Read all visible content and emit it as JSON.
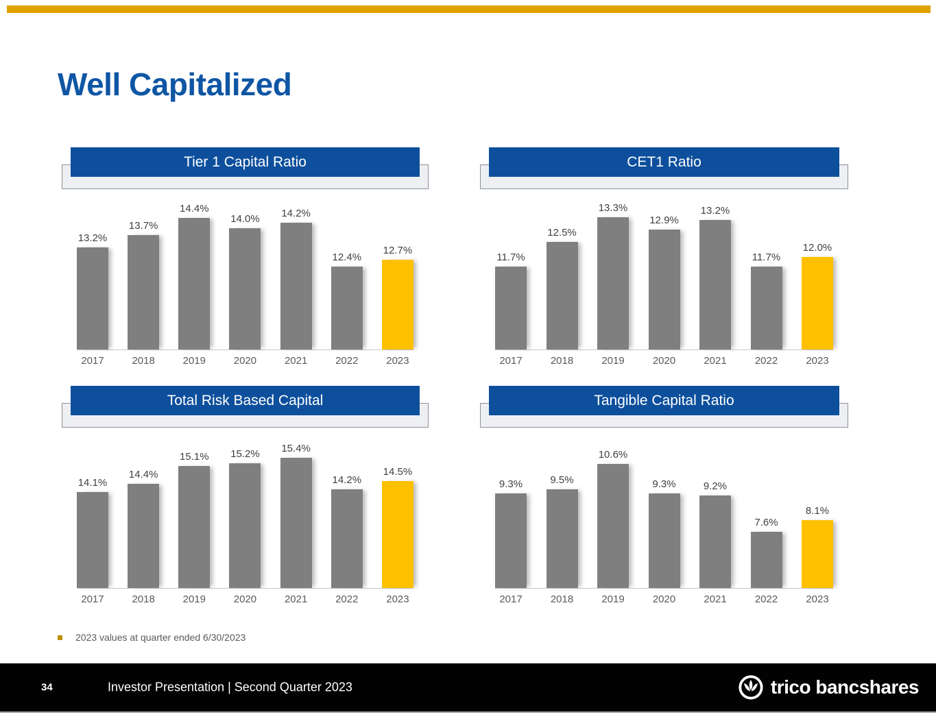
{
  "page": {
    "title": "Well Capitalized"
  },
  "colors": {
    "top_rule_gold": "#DFA301",
    "title_blue": "#0F56A4",
    "header_blue": "#0D4F9C",
    "bar_gray": "#7F7F7F",
    "bar_highlight_gold": "#FFC000",
    "footer_black": "#020202"
  },
  "chart_data": [
    {
      "type": "bar",
      "title": "Tier 1 Capital Ratio",
      "categories": [
        "2017",
        "2018",
        "2019",
        "2020",
        "2021",
        "2022",
        "2023"
      ],
      "values": [
        13.2,
        13.7,
        14.4,
        14.0,
        14.2,
        12.4,
        12.7
      ],
      "labels": [
        "13.2%",
        "13.7%",
        "14.4%",
        "14.0%",
        "14.2%",
        "12.4%",
        "12.7%"
      ],
      "ylim": [
        9.0,
        15.2
      ],
      "highlight_index": 6,
      "grid": false,
      "legend": false
    },
    {
      "type": "bar",
      "title": "CET1 Ratio",
      "categories": [
        "2017",
        "2018",
        "2019",
        "2020",
        "2021",
        "2022",
        "2023"
      ],
      "values": [
        11.7,
        12.5,
        13.3,
        12.9,
        13.2,
        11.7,
        12.0
      ],
      "labels": [
        "11.7%",
        "12.5%",
        "13.3%",
        "12.9%",
        "13.2%",
        "11.7%",
        "12.0%"
      ],
      "ylim": [
        9.0,
        13.9
      ],
      "highlight_index": 6,
      "grid": false,
      "legend": false
    },
    {
      "type": "bar",
      "title": "Total Risk Based Capital",
      "categories": [
        "2017",
        "2018",
        "2019",
        "2020",
        "2021",
        "2022",
        "2023"
      ],
      "values": [
        14.1,
        14.4,
        15.1,
        15.2,
        15.4,
        14.2,
        14.5
      ],
      "labels": [
        "14.1%",
        "14.4%",
        "15.1%",
        "15.2%",
        "15.4%",
        "14.2%",
        "14.5%"
      ],
      "ylim": [
        10.4,
        16.2
      ],
      "highlight_index": 6,
      "grid": false,
      "legend": false
    },
    {
      "type": "bar",
      "title": "Tangible Capital Ratio",
      "categories": [
        "2017",
        "2018",
        "2019",
        "2020",
        "2021",
        "2022",
        "2023"
      ],
      "values": [
        9.3,
        9.5,
        10.6,
        9.3,
        9.2,
        7.6,
        8.1
      ],
      "labels": [
        "9.3%",
        "9.5%",
        "10.6%",
        "9.3%",
        "9.2%",
        "7.6%",
        "8.1%"
      ],
      "ylim": [
        5.1,
        11.8
      ],
      "highlight_index": 6,
      "grid": false,
      "legend": false
    }
  ],
  "footnote": {
    "text": "2023 values at quarter ended 6/30/2023"
  },
  "footer": {
    "page_number": "34",
    "text": "Investor Presentation | Second Quarter 2023",
    "logo_text": "trico bancshares",
    "logo_icon": "trico-tulip-circle-icon"
  }
}
